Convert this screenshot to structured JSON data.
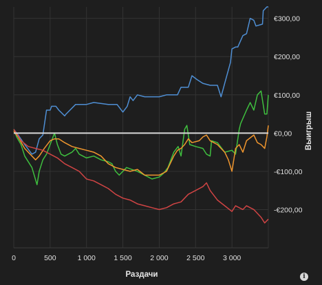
{
  "chart_data": {
    "type": "line",
    "title": "",
    "xlabel": "Раздачи",
    "ylabel": "Выигрыш",
    "xlim": [
      0,
      3500
    ],
    "ylim": [
      -300,
      330
    ],
    "grid": true,
    "legend": "none",
    "x_ticks": [
      {
        "value": 0,
        "label": "0"
      },
      {
        "value": 500,
        "label": "500"
      },
      {
        "value": 1000,
        "label": "1 000"
      },
      {
        "value": 1500,
        "label": "1 500"
      },
      {
        "value": 2000,
        "label": "2 000"
      },
      {
        "value": 2500,
        "label": "2 500"
      },
      {
        "value": 3000,
        "label": "3 000"
      }
    ],
    "y_ticks": [
      {
        "value": 300,
        "label": "€300,00"
      },
      {
        "value": 200,
        "label": "€200,00"
      },
      {
        "value": 100,
        "label": "€100,00"
      },
      {
        "value": 0,
        "label": "€0,00"
      },
      {
        "value": -100,
        "label": "-€100,00"
      },
      {
        "value": -200,
        "label": "-€200,00"
      }
    ],
    "zero_line_color": "#d8d8d8",
    "series": [
      {
        "color": "#4f8fd4",
        "points": [
          [
            0,
            10
          ],
          [
            60,
            -5
          ],
          [
            150,
            -30
          ],
          [
            250,
            -55
          ],
          [
            300,
            -50
          ],
          [
            350,
            -15
          ],
          [
            400,
            -5
          ],
          [
            450,
            60
          ],
          [
            500,
            60
          ],
          [
            520,
            70
          ],
          [
            580,
            70
          ],
          [
            620,
            60
          ],
          [
            700,
            45
          ],
          [
            720,
            50
          ],
          [
            850,
            75
          ],
          [
            1000,
            75
          ],
          [
            1100,
            80
          ],
          [
            1300,
            75
          ],
          [
            1420,
            75
          ],
          [
            1500,
            55
          ],
          [
            1560,
            70
          ],
          [
            1600,
            95
          ],
          [
            1640,
            85
          ],
          [
            1700,
            100
          ],
          [
            1800,
            95
          ],
          [
            2000,
            95
          ],
          [
            2100,
            100
          ],
          [
            2250,
            100
          ],
          [
            2300,
            120
          ],
          [
            2400,
            120
          ],
          [
            2450,
            150
          ],
          [
            2520,
            140
          ],
          [
            2600,
            130
          ],
          [
            2700,
            125
          ],
          [
            2800,
            125
          ],
          [
            2850,
            95
          ],
          [
            2900,
            130
          ],
          [
            2980,
            185
          ],
          [
            3000,
            220
          ],
          [
            3050,
            225
          ],
          [
            3080,
            225
          ],
          [
            3150,
            255
          ],
          [
            3200,
            260
          ],
          [
            3250,
            300
          ],
          [
            3300,
            295
          ],
          [
            3330,
            280
          ],
          [
            3420,
            285
          ],
          [
            3430,
            320
          ],
          [
            3480,
            330
          ],
          [
            3500,
            330
          ]
        ]
      },
      {
        "color": "#3fbf3f",
        "points": [
          [
            0,
            10
          ],
          [
            40,
            -10
          ],
          [
            100,
            -30
          ],
          [
            150,
            -60
          ],
          [
            250,
            -90
          ],
          [
            320,
            -135
          ],
          [
            350,
            -100
          ],
          [
            400,
            -70
          ],
          [
            450,
            -55
          ],
          [
            520,
            -20
          ],
          [
            560,
            0
          ],
          [
            600,
            -30
          ],
          [
            650,
            -55
          ],
          [
            700,
            -60
          ],
          [
            800,
            -50
          ],
          [
            850,
            -40
          ],
          [
            900,
            -55
          ],
          [
            1000,
            -65
          ],
          [
            1100,
            -60
          ],
          [
            1200,
            -70
          ],
          [
            1300,
            -75
          ],
          [
            1350,
            -80
          ],
          [
            1400,
            -100
          ],
          [
            1450,
            -110
          ],
          [
            1550,
            -90
          ],
          [
            1620,
            -95
          ],
          [
            1700,
            -100
          ],
          [
            1800,
            -110
          ],
          [
            1900,
            -120
          ],
          [
            2000,
            -115
          ],
          [
            2060,
            -105
          ],
          [
            2120,
            -90
          ],
          [
            2200,
            -50
          ],
          [
            2260,
            -35
          ],
          [
            2300,
            -60
          ],
          [
            2350,
            10
          ],
          [
            2380,
            20
          ],
          [
            2420,
            -30
          ],
          [
            2500,
            -35
          ],
          [
            2600,
            -40
          ],
          [
            2650,
            -55
          ],
          [
            2700,
            -60
          ],
          [
            2720,
            -20
          ],
          [
            2800,
            -25
          ],
          [
            2900,
            -50
          ],
          [
            3000,
            -45
          ],
          [
            3050,
            -55
          ],
          [
            3100,
            10
          ],
          [
            3120,
            25
          ],
          [
            3200,
            60
          ],
          [
            3250,
            80
          ],
          [
            3300,
            60
          ],
          [
            3350,
            100
          ],
          [
            3400,
            110
          ],
          [
            3450,
            50
          ],
          [
            3480,
            50
          ],
          [
            3500,
            100
          ]
        ]
      },
      {
        "color": "#f0962e",
        "points": [
          [
            0,
            5
          ],
          [
            60,
            -10
          ],
          [
            150,
            -40
          ],
          [
            250,
            -60
          ],
          [
            300,
            -70
          ],
          [
            350,
            -60
          ],
          [
            420,
            -40
          ],
          [
            500,
            -20
          ],
          [
            560,
            -15
          ],
          [
            620,
            -15
          ],
          [
            700,
            -25
          ],
          [
            800,
            -35
          ],
          [
            900,
            -40
          ],
          [
            1000,
            -45
          ],
          [
            1100,
            -50
          ],
          [
            1200,
            -60
          ],
          [
            1300,
            -80
          ],
          [
            1400,
            -90
          ],
          [
            1500,
            -95
          ],
          [
            1600,
            -100
          ],
          [
            1700,
            -95
          ],
          [
            1800,
            -110
          ],
          [
            1900,
            -110
          ],
          [
            2000,
            -110
          ],
          [
            2100,
            -100
          ],
          [
            2150,
            -80
          ],
          [
            2200,
            -60
          ],
          [
            2250,
            -45
          ],
          [
            2300,
            -40
          ],
          [
            2350,
            -30
          ],
          [
            2400,
            -15
          ],
          [
            2450,
            -25
          ],
          [
            2550,
            -20
          ],
          [
            2600,
            -10
          ],
          [
            2650,
            -5
          ],
          [
            2700,
            -20
          ],
          [
            2800,
            -30
          ],
          [
            2900,
            -50
          ],
          [
            2950,
            -70
          ],
          [
            3000,
            -100
          ],
          [
            3050,
            -40
          ],
          [
            3100,
            -30
          ],
          [
            3150,
            -50
          ],
          [
            3200,
            -20
          ],
          [
            3300,
            -5
          ],
          [
            3350,
            -25
          ],
          [
            3400,
            -30
          ],
          [
            3450,
            -40
          ],
          [
            3480,
            -10
          ],
          [
            3500,
            20
          ]
        ]
      },
      {
        "color": "#d04444",
        "points": [
          [
            0,
            10
          ],
          [
            100,
            -20
          ],
          [
            200,
            -35
          ],
          [
            300,
            -40
          ],
          [
            400,
            -45
          ],
          [
            500,
            -55
          ],
          [
            600,
            -65
          ],
          [
            700,
            -80
          ],
          [
            800,
            -90
          ],
          [
            900,
            -100
          ],
          [
            1000,
            -120
          ],
          [
            1100,
            -125
          ],
          [
            1200,
            -135
          ],
          [
            1300,
            -145
          ],
          [
            1400,
            -160
          ],
          [
            1500,
            -170
          ],
          [
            1600,
            -175
          ],
          [
            1700,
            -185
          ],
          [
            1800,
            -190
          ],
          [
            1900,
            -195
          ],
          [
            2000,
            -200
          ],
          [
            2100,
            -195
          ],
          [
            2200,
            -185
          ],
          [
            2300,
            -180
          ],
          [
            2400,
            -160
          ],
          [
            2500,
            -150
          ],
          [
            2600,
            -140
          ],
          [
            2650,
            -130
          ],
          [
            2700,
            -150
          ],
          [
            2800,
            -175
          ],
          [
            2900,
            -190
          ],
          [
            3000,
            -205
          ],
          [
            3050,
            -190
          ],
          [
            3100,
            -195
          ],
          [
            3150,
            -200
          ],
          [
            3200,
            -190
          ],
          [
            3300,
            -200
          ],
          [
            3400,
            -220
          ],
          [
            3450,
            -235
          ],
          [
            3500,
            -225
          ]
        ]
      }
    ]
  }
}
